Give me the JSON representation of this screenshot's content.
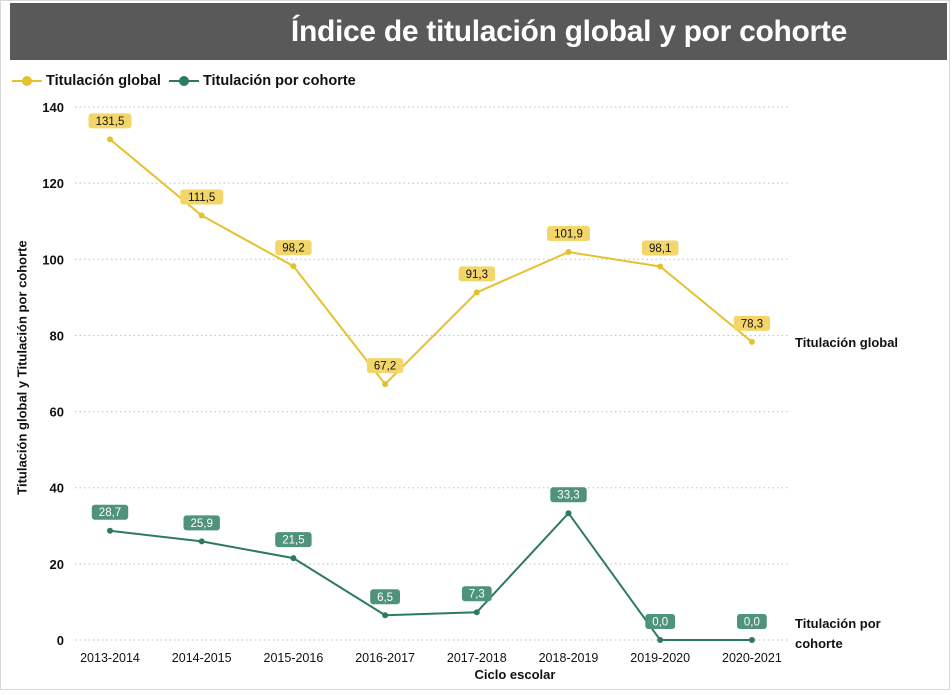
{
  "title": "Índice de titulación global y por cohorte",
  "colors": {
    "global": "#e6c12e",
    "global_label_bg": "#f2d669",
    "cohorte": "#2e7a5c",
    "cohorte_label_bg": "#4f937a",
    "title_bar": "#595959",
    "grid": "#bdbdbd"
  },
  "chart_data": {
    "type": "line",
    "categories": [
      "2013-2014",
      "2014-2015",
      "2015-2016",
      "2016-2017",
      "2017-2018",
      "2018-2019",
      "2019-2020",
      "2020-2021"
    ],
    "series": [
      {
        "name": "Titulación global",
        "end_label": "Titulación global",
        "values": [
          131.5,
          111.5,
          98.2,
          67.2,
          91.3,
          101.9,
          98.1,
          78.3
        ],
        "labels": [
          "131,5",
          "111,5",
          "98,2",
          "67,2",
          "91,3",
          "101,9",
          "98,1",
          "78,3"
        ]
      },
      {
        "name": "Titulación por cohorte",
        "end_label": "Titulación por cohorte",
        "values": [
          28.7,
          25.9,
          21.5,
          6.5,
          7.3,
          33.3,
          0.0,
          0.0
        ],
        "labels": [
          "28,7",
          "25,9",
          "21,5",
          "6,5",
          "7,3",
          "33,3",
          "0,0",
          "0,0"
        ]
      }
    ],
    "xlabel": "Ciclo escolar",
    "ylabel": "Titulación global y Titulación por cohorte",
    "ylim": [
      0,
      140
    ],
    "yticks": [
      "0",
      "20",
      "40",
      "60",
      "80",
      "100",
      "120",
      "140"
    ],
    "grid": "horizontal dotted",
    "legend": "top-left"
  }
}
